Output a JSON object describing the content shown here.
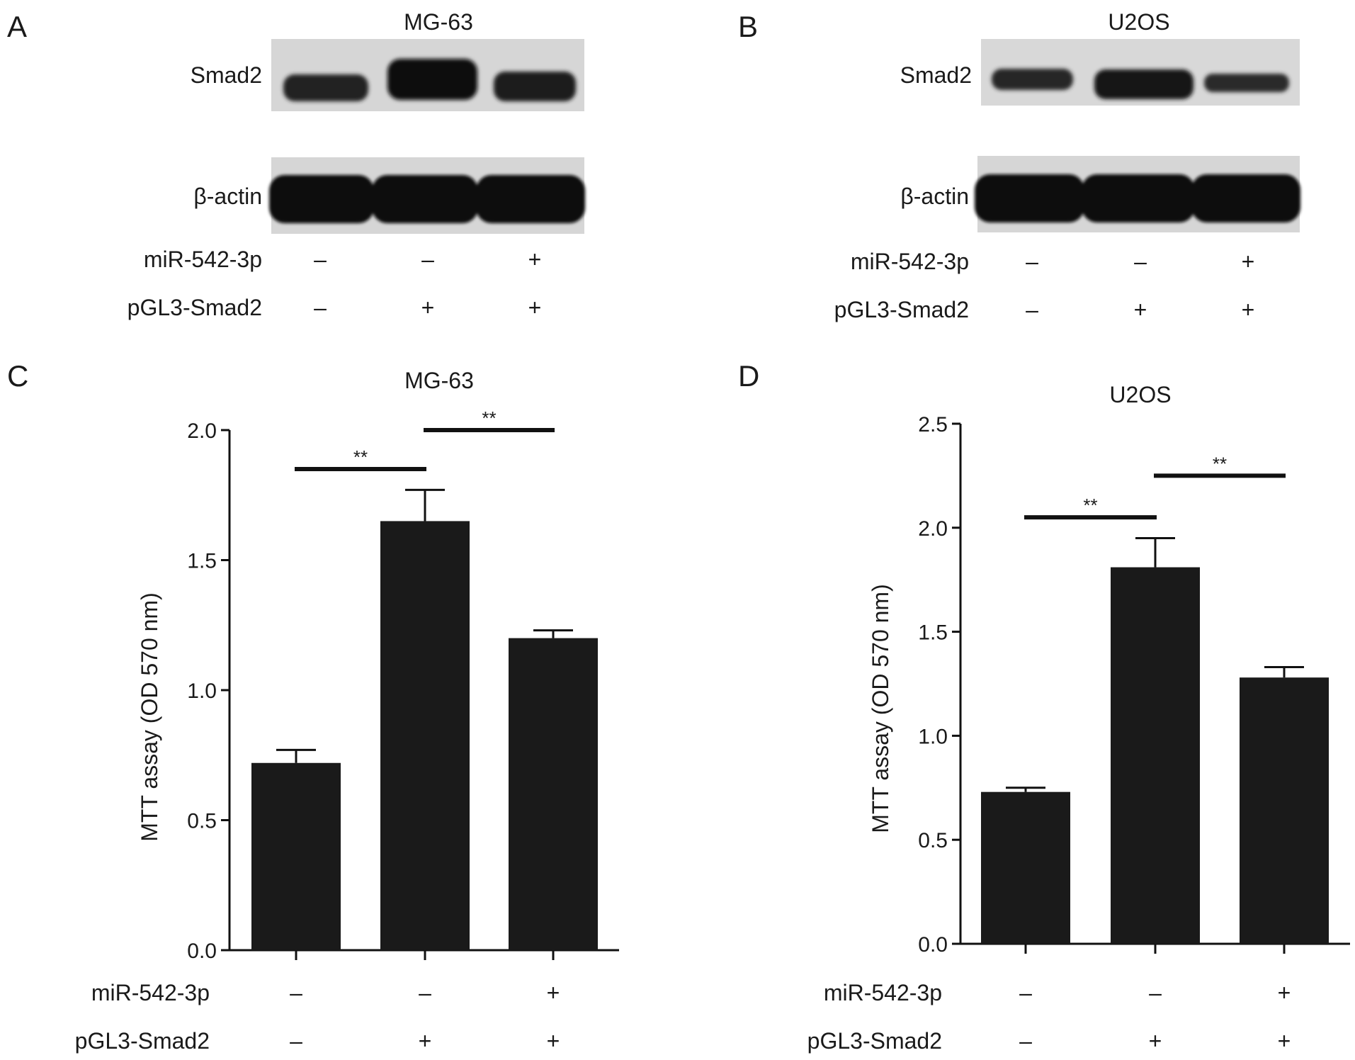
{
  "panels": {
    "A": {
      "letter": "A",
      "title": "MG-63",
      "blot_labels": [
        "Smad2",
        "β-actin"
      ],
      "row_labels": [
        "miR-542-3p",
        "pGL3-Smad2"
      ],
      "signs": [
        [
          "–",
          "–",
          "+"
        ],
        [
          "–",
          "+",
          "+"
        ]
      ],
      "smad2_intensity": [
        0.55,
        1.0,
        0.8
      ],
      "actin_intensity": [
        1.0,
        1.0,
        1.0
      ]
    },
    "B": {
      "letter": "B",
      "title": "U2OS",
      "blot_labels": [
        "Smad2",
        "β-actin"
      ],
      "row_labels": [
        "miR-542-3p",
        "pGL3-Smad2"
      ],
      "signs": [
        [
          "–",
          "–",
          "+"
        ],
        [
          "–",
          "+",
          "+"
        ]
      ],
      "smad2_intensity": [
        0.55,
        0.95,
        0.5
      ],
      "actin_intensity": [
        1.0,
        1.0,
        1.0
      ]
    },
    "C": {
      "letter": "C",
      "row_labels": [
        "miR-542-3p",
        "pGL3-Smad2"
      ],
      "signs": [
        [
          "–",
          "–",
          "+"
        ],
        [
          "–",
          "+",
          "+"
        ]
      ]
    },
    "D": {
      "letter": "D",
      "row_labels": [
        "miR-542-3p",
        "pGL3-Smad2"
      ],
      "signs": [
        [
          "–",
          "–",
          "+"
        ],
        [
          "–",
          "+",
          "+"
        ]
      ]
    }
  },
  "colors": {
    "bar": "#1a1a1a",
    "band": "#111111",
    "blot_bg": "#d6d6d6"
  },
  "chart_data": [
    {
      "type": "bar",
      "panel": "C",
      "title": "MG-63",
      "ylabel": "MTT assay (OD 570 nm)",
      "ylim": [
        0,
        2.0
      ],
      "yticks": [
        "0.0",
        "0.5",
        "1.0",
        "1.5",
        "2.0"
      ],
      "values": [
        0.72,
        1.65,
        1.2
      ],
      "errors": [
        0.05,
        0.12,
        0.03
      ],
      "significance": [
        {
          "from": 0,
          "to": 1,
          "label": "**",
          "y": 1.85
        },
        {
          "from": 1,
          "to": 2,
          "label": "**",
          "y": 2.0
        }
      ],
      "grid": false
    },
    {
      "type": "bar",
      "panel": "D",
      "title": "U2OS",
      "ylabel": "MTT assay (OD 570 nm)",
      "ylim": [
        0,
        2.5
      ],
      "yticks": [
        "0.0",
        "0.5",
        "1.0",
        "1.5",
        "2.0",
        "2.5"
      ],
      "values": [
        0.73,
        1.81,
        1.28
      ],
      "errors": [
        0.02,
        0.14,
        0.05
      ],
      "significance": [
        {
          "from": 0,
          "to": 1,
          "label": "**",
          "y": 2.05
        },
        {
          "from": 1,
          "to": 2,
          "label": "**",
          "y": 2.25
        }
      ],
      "grid": false
    }
  ]
}
